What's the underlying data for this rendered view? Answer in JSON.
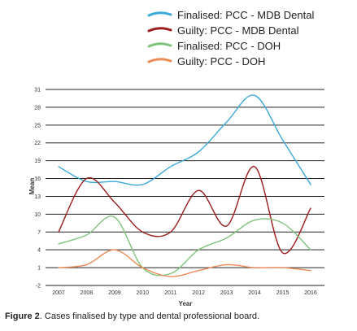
{
  "chart_data": {
    "type": "line",
    "xlabel": "Year",
    "ylabel": "Mean",
    "x": [
      "2007",
      "2008",
      "2009",
      "2010",
      "2011",
      "2012",
      "2013",
      "2014",
      "2015",
      "2016"
    ],
    "ylim": [
      -2,
      31
    ],
    "yticks": [
      -2,
      1,
      4,
      7,
      10,
      13,
      16,
      19,
      22,
      25,
      28,
      31
    ],
    "grid": "horizontal",
    "legend_position": "top-right",
    "series": [
      {
        "name": "Finalised: PCC - MDB Dental",
        "color": "#3aa9d8",
        "values": [
          18,
          15.5,
          15.5,
          15,
          18,
          20.5,
          25.5,
          30,
          22.5,
          15
        ]
      },
      {
        "name": "Guilty: PCC - MDB Dental",
        "color": "#9b1c1c",
        "values": [
          7,
          16,
          12,
          7,
          7,
          14,
          8,
          18,
          3.5,
          11
        ]
      },
      {
        "name": "Finalised: PCC - DOH",
        "color": "#7dc47a",
        "values": [
          5,
          6.5,
          9.5,
          1,
          0,
          4,
          6,
          9,
          8.5,
          4
        ]
      },
      {
        "name": "Guilty: PCC - DOH",
        "color": "#ee8a55",
        "values": [
          1,
          1.5,
          4,
          1,
          -0.5,
          0.5,
          1.5,
          1,
          1,
          0.5
        ]
      }
    ]
  },
  "caption": {
    "label": "Figure 2",
    "text": ". Cases finalised by type and dental professional board."
  }
}
